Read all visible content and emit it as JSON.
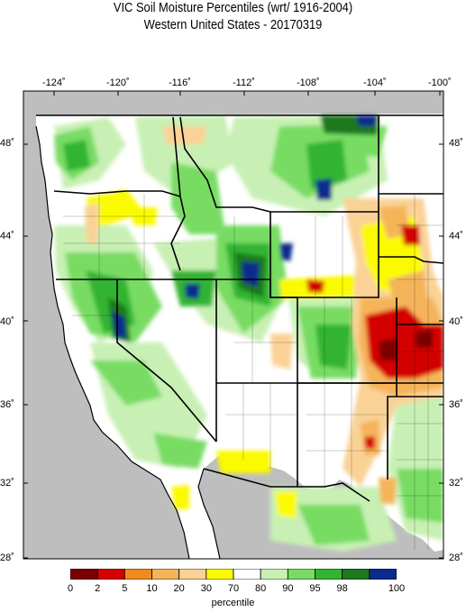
{
  "title_line1": "VIC Soil Moisture Percentiles (wrt/ 1916-2004)",
  "title_line2": "Western United States - 20170319",
  "lon_ticks": [
    "-124˚",
    "-120˚",
    "-116˚",
    "-112˚",
    "-108˚",
    "-104˚",
    "-100˚"
  ],
  "lat_ticks": [
    "48˚",
    "44˚",
    "40˚",
    "36˚",
    "32˚",
    "28˚"
  ],
  "legend": {
    "title": "percentile",
    "labels": [
      "0",
      "2",
      "5",
      "10",
      "20",
      "30",
      "70",
      "80",
      "90",
      "95",
      "98",
      "100"
    ],
    "colors": [
      "#7a0000",
      "#d40000",
      "#f08c1e",
      "#f5b45a",
      "#fad296",
      "#fafa00",
      "#ffffff",
      "#c8f0b4",
      "#78dc64",
      "#32b432",
      "#1e781e",
      "#0a2a8c"
    ]
  },
  "map_colors": {
    "land": "#ffffff",
    "ocean": "#bebebe",
    "border": "#000000"
  }
}
